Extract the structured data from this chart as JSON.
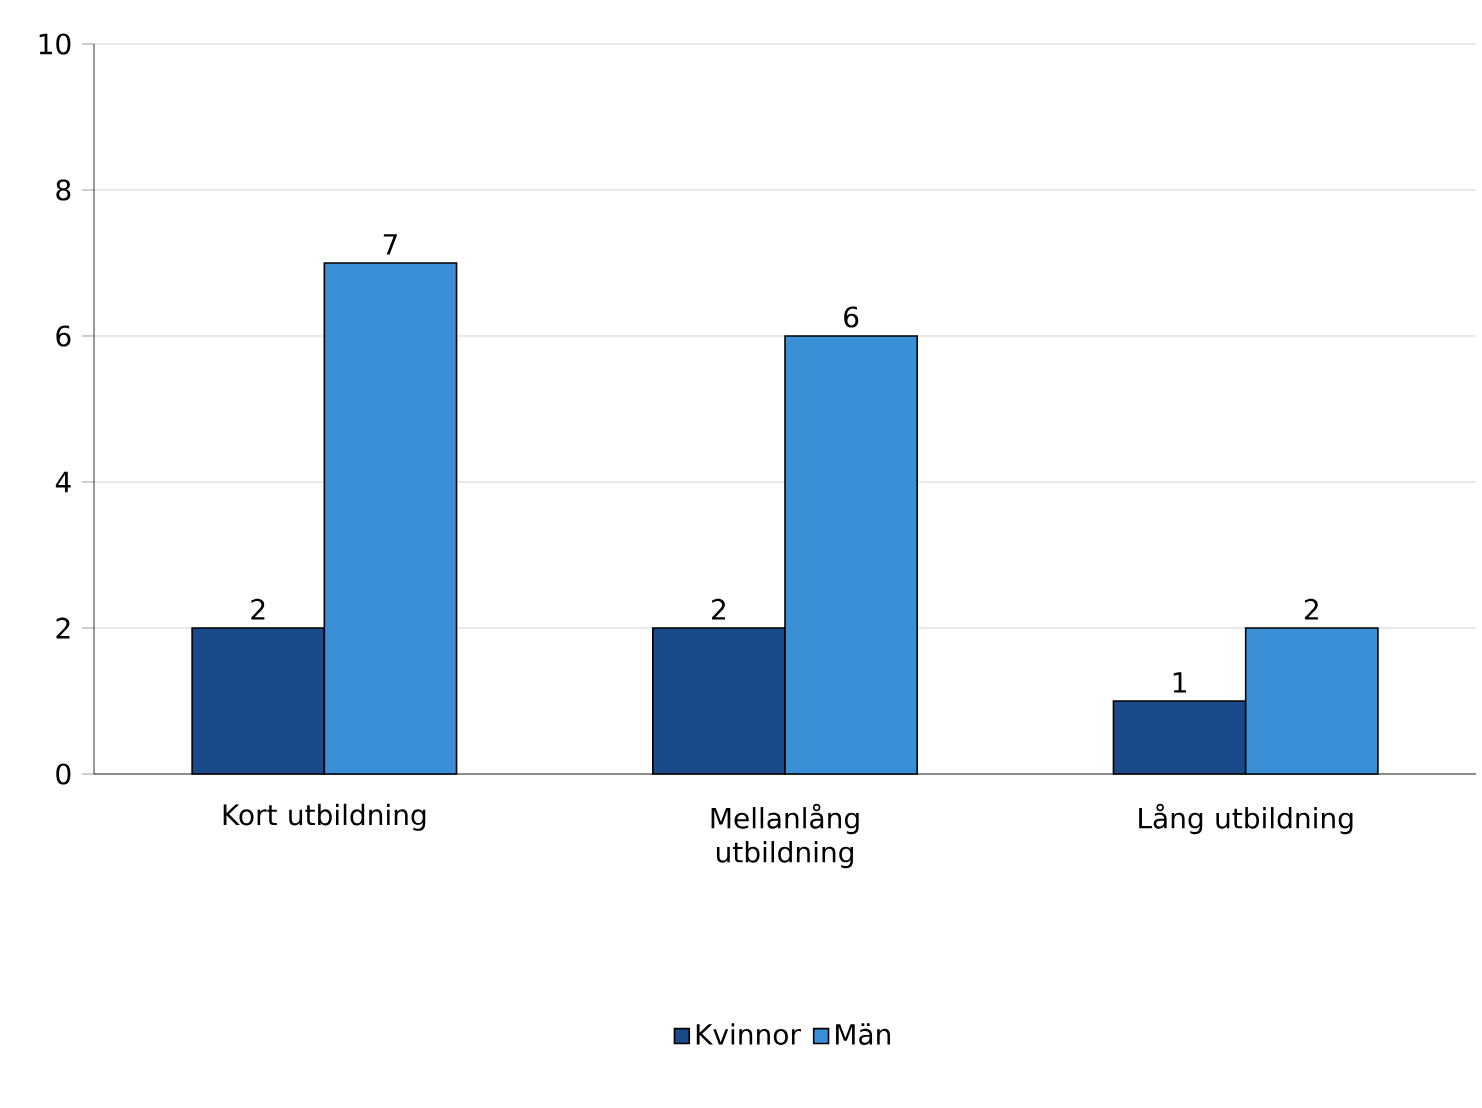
{
  "chart_data": {
    "type": "bar",
    "categories": [
      "Kort utbildning",
      "Mellanlång utbildning",
      "Lång utbildning"
    ],
    "series": [
      {
        "name": "Kvinnor",
        "color": "#1a4a8a",
        "values": [
          2,
          2,
          1
        ]
      },
      {
        "name": "Män",
        "color": "#3a8fd6",
        "values": [
          7,
          6,
          2
        ]
      }
    ],
    "ylim": [
      0,
      10
    ],
    "yticks": [
      0,
      2,
      4,
      6,
      8,
      10
    ],
    "grid": "y",
    "legend": "bottom",
    "data_labels": true
  }
}
